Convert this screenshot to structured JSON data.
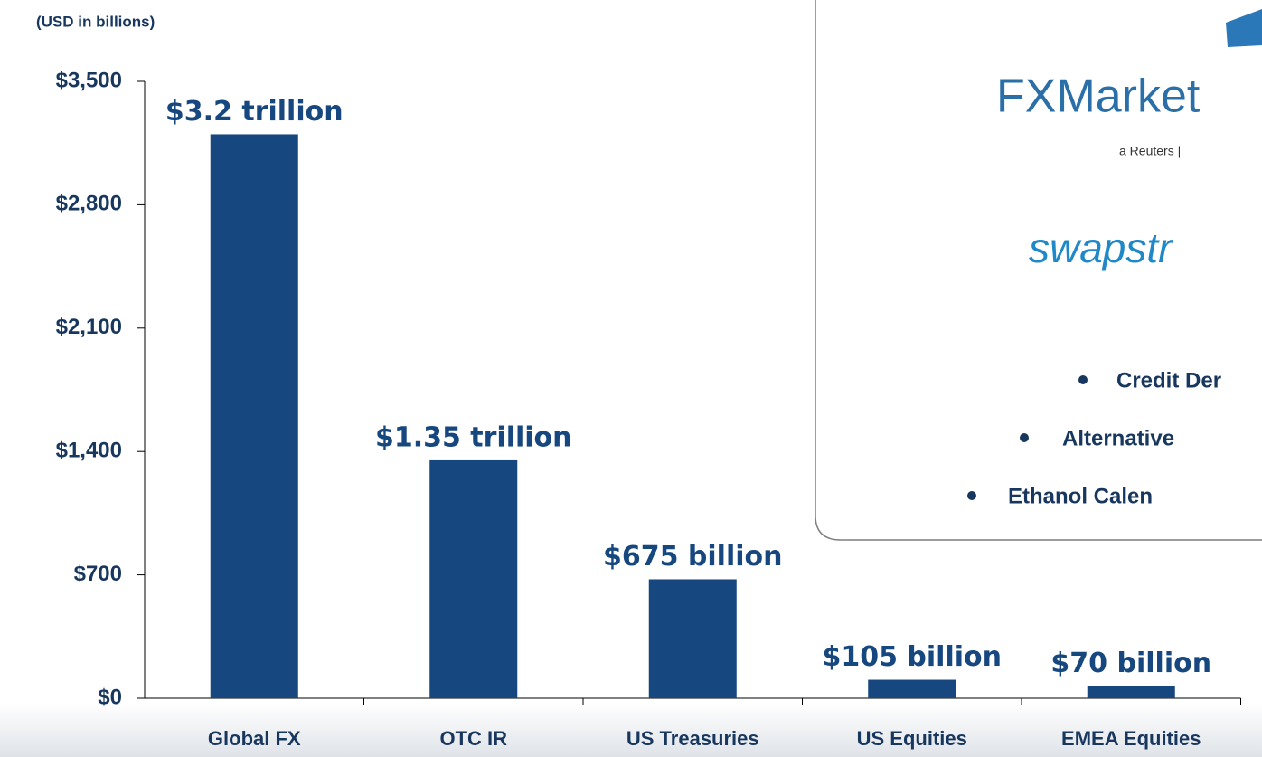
{
  "chart_data": {
    "type": "bar",
    "subtitle": "(USD in billions)",
    "categories": [
      "Global FX",
      "OTC IR",
      "US Treasuries",
      "US Equities",
      "EMEA Equities"
    ],
    "values": [
      3200,
      1350,
      675,
      105,
      70
    ],
    "value_labels": [
      "$3.2 trillion",
      "$1.35 trillion",
      "$675 billion",
      "$105 billion",
      "$70 billion"
    ],
    "color": "#17477f",
    "ylim": [
      0,
      3500
    ],
    "yticks": [
      {
        "value": 0,
        "label": "$0"
      },
      {
        "value": 700,
        "label": "$700"
      },
      {
        "value": 1400,
        "label": "$1,400"
      },
      {
        "value": 2100,
        "label": "$2,100"
      },
      {
        "value": 2800,
        "label": "$2,800"
      },
      {
        "value": 3500,
        "label": "$3,500"
      }
    ]
  },
  "overlay": {
    "logo1": "FXMarket",
    "logo1_sub": "a Reuters | ",
    "logo2": "swapstr",
    "bullets": [
      "Credit Der",
      "Alternative",
      "Ethanol Calen"
    ]
  }
}
